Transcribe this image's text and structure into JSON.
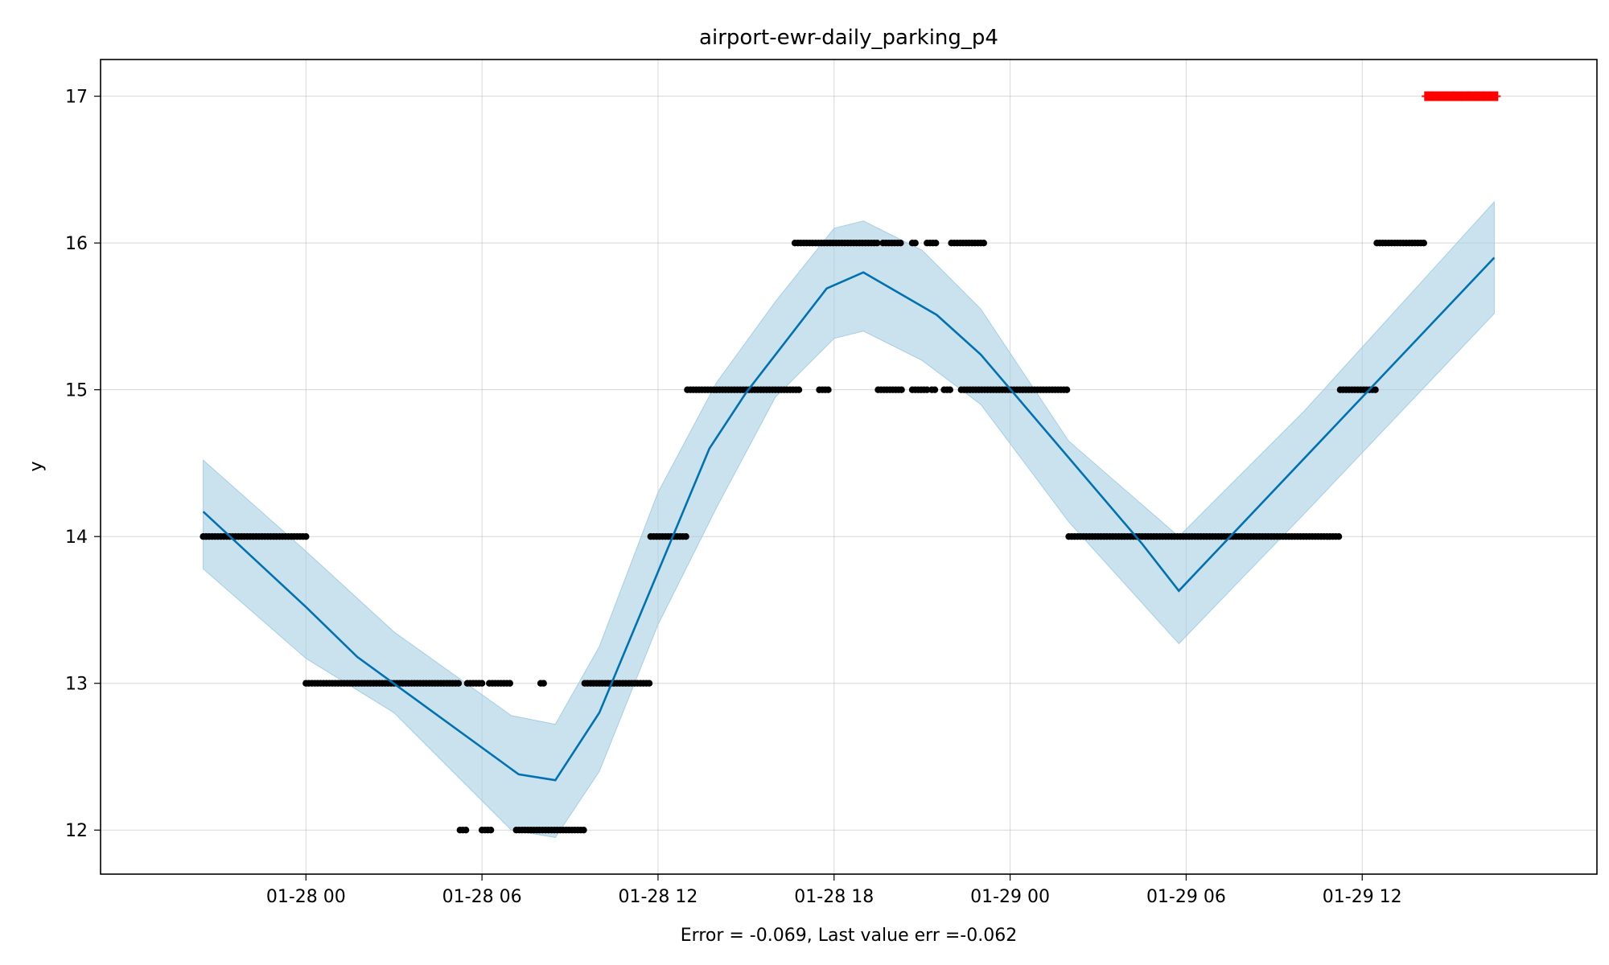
{
  "chart_data": {
    "type": "line",
    "title": "airport-ewr-daily_parking_p4",
    "xlabel": "Error = -0.069, Last value err =-0.062",
    "ylabel": "y",
    "x_unit": "hours",
    "xlim": [
      "01-27 17:00",
      "01-29 20:00"
    ],
    "ylim": [
      11.7,
      17.25
    ],
    "x_ticks": [
      "01-28 00",
      "01-28 06",
      "01-28 12",
      "01-28 18",
      "01-29 00",
      "01-29 06",
      "01-29 12"
    ],
    "x_tick_times": [
      "01-28 00:00",
      "01-28 06:00",
      "01-28 12:00",
      "01-28 18:00",
      "01-29 00:00",
      "01-29 06:00",
      "01-29 12:00"
    ],
    "y_ticks": [
      12,
      13,
      14,
      15,
      16,
      17
    ],
    "grid": true,
    "colors": {
      "forecast": "#0072b2",
      "band": "#a6cee3",
      "observed": "#000000",
      "future": "#ff0000"
    },
    "forecast": {
      "name": "",
      "t": [
        "01-27 20:30",
        "01-28 00:00",
        "01-28 01:45",
        "01-28 07:15",
        "01-28 08:30",
        "01-28 10:00",
        "01-28 13:45",
        "01-28 15:00",
        "01-28 17:45",
        "01-28 19:00",
        "01-28 21:30",
        "01-28 23:00",
        "01-29 04:30",
        "01-29 05:45",
        "01-29 16:30"
      ],
      "y": [
        14.17,
        13.52,
        13.18,
        12.38,
        12.34,
        12.8,
        14.6,
        14.98,
        15.69,
        15.8,
        15.51,
        15.24,
        13.95,
        13.63,
        15.9
      ]
    },
    "band": {
      "t": [
        "01-27 20:30",
        "01-28 00:00",
        "01-28 03:00",
        "01-28 07:00",
        "01-28 08:30",
        "01-28 10:00",
        "01-28 12:00",
        "01-28 14:00",
        "01-28 16:00",
        "01-28 18:00",
        "01-28 19:00",
        "01-28 21:00",
        "01-28 23:00",
        "01-29 02:00",
        "01-29 05:45",
        "01-29 10:00",
        "01-29 16:30"
      ],
      "upper": [
        14.52,
        13.9,
        13.35,
        12.78,
        12.72,
        13.25,
        14.3,
        15.05,
        15.6,
        16.1,
        16.15,
        15.95,
        15.55,
        14.65,
        14.0,
        14.85,
        16.28
      ],
      "lower": [
        13.78,
        13.17,
        12.8,
        12.0,
        11.95,
        12.4,
        13.4,
        14.2,
        14.95,
        15.35,
        15.4,
        15.2,
        14.9,
        14.1,
        13.27,
        14.15,
        15.52
      ]
    },
    "observed": [
      {
        "t0": "01-27 20:30",
        "t1": "01-28 00:00",
        "y": 14
      },
      {
        "t0": "01-28 00:00",
        "t1": "01-28 05:15",
        "y": 13
      },
      {
        "t0": "01-28 05:30",
        "t1": "01-28 06:00",
        "y": 13
      },
      {
        "t0": "01-28 06:15",
        "t1": "01-28 07:00",
        "y": 13
      },
      {
        "t0": "01-28 08:00",
        "t1": "01-28 08:10",
        "y": 13
      },
      {
        "t0": "01-28 09:30",
        "t1": "01-28 11:45",
        "y": 13
      },
      {
        "t0": "01-28 05:15",
        "t1": "01-28 05:30",
        "y": 12
      },
      {
        "t0": "01-28 06:00",
        "t1": "01-28 06:20",
        "y": 12
      },
      {
        "t0": "01-28 07:10",
        "t1": "01-28 09:30",
        "y": 12
      },
      {
        "t0": "01-28 11:45",
        "t1": "01-28 13:00",
        "y": 14
      },
      {
        "t0": "01-28 13:00",
        "t1": "01-28 16:50",
        "y": 15
      },
      {
        "t0": "01-28 17:30",
        "t1": "01-28 17:50",
        "y": 15
      },
      {
        "t0": "01-28 19:30",
        "t1": "01-28 20:20",
        "y": 15
      },
      {
        "t0": "01-28 20:40",
        "t1": "01-28 21:10",
        "y": 15
      },
      {
        "t0": "01-28 21:20",
        "t1": "01-28 21:30",
        "y": 15
      },
      {
        "t0": "01-28 21:45",
        "t1": "01-28 22:00",
        "y": 15
      },
      {
        "t0": "01-28 22:20",
        "t1": "01-29 02:00",
        "y": 15
      },
      {
        "t0": "01-28 16:40",
        "t1": "01-28 19:30",
        "y": 16
      },
      {
        "t0": "01-28 19:40",
        "t1": "01-28 20:20",
        "y": 16
      },
      {
        "t0": "01-28 20:40",
        "t1": "01-28 20:50",
        "y": 16
      },
      {
        "t0": "01-28 21:10",
        "t1": "01-28 21:30",
        "y": 16
      },
      {
        "t0": "01-28 22:00",
        "t1": "01-28 23:10",
        "y": 16
      },
      {
        "t0": "01-29 02:00",
        "t1": "01-29 11:15",
        "y": 14
      },
      {
        "t0": "01-29 11:15",
        "t1": "01-29 12:30",
        "y": 15
      },
      {
        "t0": "01-29 12:30",
        "t1": "01-29 14:10",
        "y": 16
      }
    ],
    "future": {
      "name": "",
      "t": [
        "01-29 14:15",
        "01-29 14:30",
        "01-29 14:45",
        "01-29 15:00",
        "01-29 15:15",
        "01-29 15:30",
        "01-29 15:45",
        "01-29 16:00",
        "01-29 16:15",
        "01-29 16:30"
      ],
      "y": [
        17,
        17,
        17,
        17,
        17,
        17,
        17,
        17,
        17,
        17
      ]
    }
  }
}
